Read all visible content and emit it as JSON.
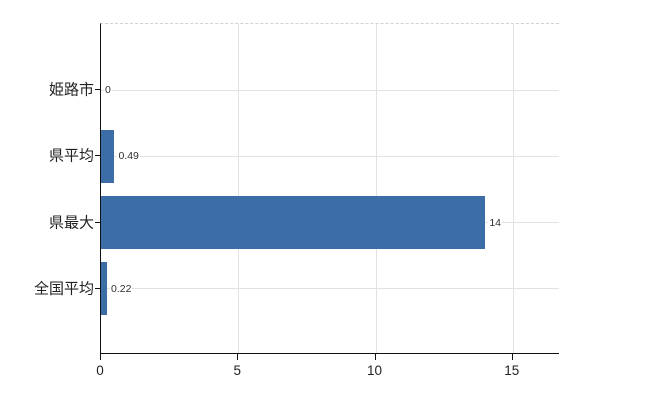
{
  "chart_data": {
    "type": "bar",
    "orientation": "horizontal",
    "categories": [
      "姫路市",
      "県平均",
      "県最大",
      "全国平均"
    ],
    "values": [
      0,
      0.49,
      14,
      0.22
    ],
    "value_labels": [
      "0",
      "0.49",
      "14",
      "0.22"
    ],
    "x_ticks": [
      "0",
      "5",
      "10",
      "15"
    ],
    "x_tick_values": [
      0,
      5,
      10,
      15
    ],
    "xlim": [
      0,
      16.72
    ],
    "title": "",
    "xlabel": "",
    "ylabel": "",
    "grid": true,
    "legend": false,
    "bar_color": "#3d6da6",
    "gridline_color": "#dfe4df",
    "axis_color": "#111111"
  }
}
